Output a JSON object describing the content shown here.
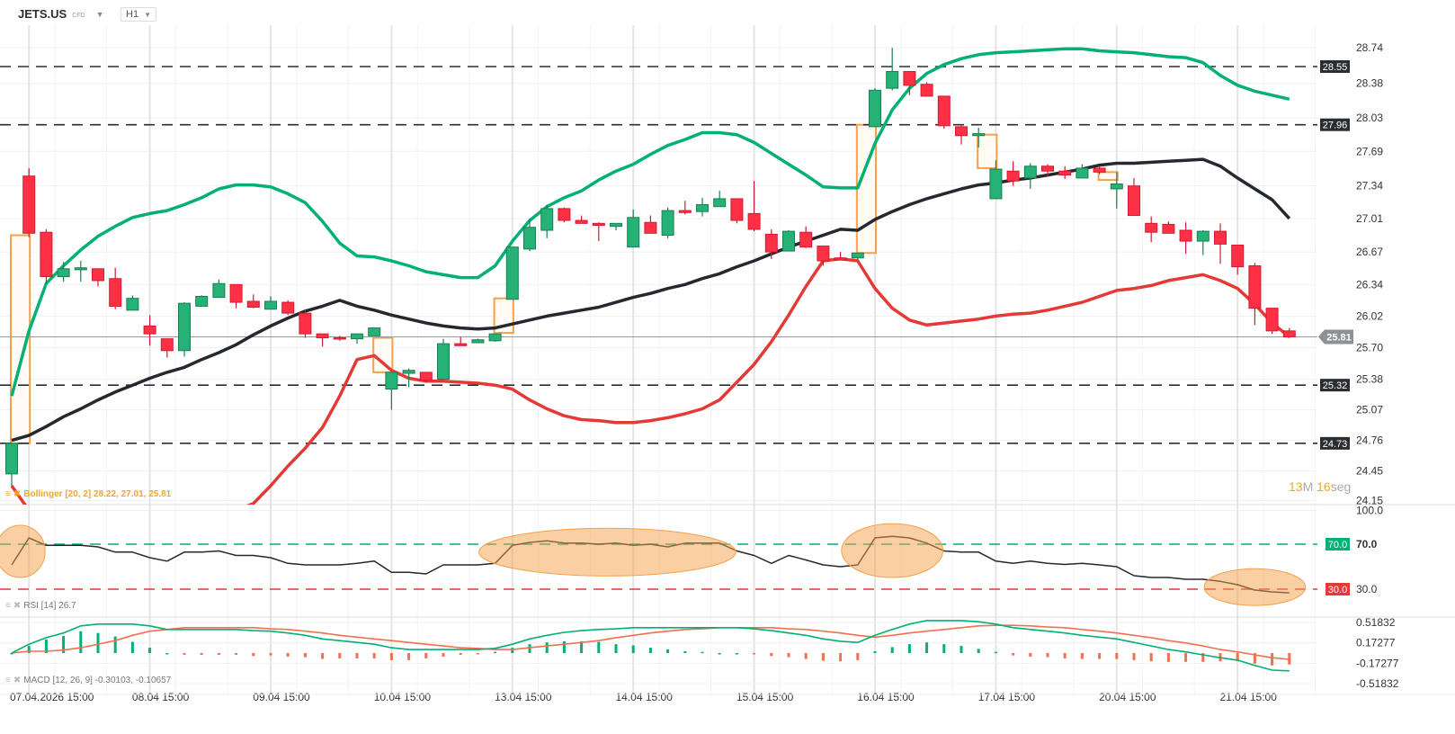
{
  "header": {
    "symbol": "JETS.US",
    "instrument_type": "CFD",
    "timeframe": "H1"
  },
  "colors": {
    "bull": "#26b276",
    "bear": "#ff3045",
    "upper_band": "#00b074",
    "middle_band": "#23292e",
    "lower_band": "#e53935",
    "gap_box": "#f5a04a",
    "rsi_line": "#23292e",
    "macd_line": "#00b074",
    "signal_line": "#f07050",
    "level_line": "#2a2e33"
  },
  "timer": {
    "minutes": "13",
    "minutes_unit": "M",
    "seconds": "16",
    "seconds_unit": "seg"
  },
  "chart_data": [
    {
      "type": "candlestick",
      "title": "",
      "ylim": [
        24.12,
        28.9
      ],
      "y_ticks": [
        "28.74",
        "28.38",
        "28.03",
        "27.69",
        "27.34",
        "27.01",
        "26.67",
        "26.34",
        "26.02",
        "25.70",
        "25.38",
        "25.07",
        "24.76",
        "24.45",
        "24.15"
      ],
      "x_ticks": [
        {
          "index": 1,
          "label": "07.04.2026 15:00"
        },
        {
          "index": 8,
          "label": "08.04 15:00"
        },
        {
          "index": 15,
          "label": "09.04 15:00"
        },
        {
          "index": 22,
          "label": "10.04 15:00"
        },
        {
          "index": 29,
          "label": "13.04 15:00"
        },
        {
          "index": 36,
          "label": "14.04 15:00"
        },
        {
          "index": 43,
          "label": "15.04 15:00"
        },
        {
          "index": 50,
          "label": "16.04 15:00"
        },
        {
          "index": 57,
          "label": "17.04 15:00"
        },
        {
          "index": 64,
          "label": "20.04 15:00"
        },
        {
          "index": 71,
          "label": "21.04 15:00"
        }
      ],
      "ohlc_order": [
        "open",
        "high",
        "low",
        "close"
      ],
      "candles": [
        [
          24.42,
          24.74,
          24.3,
          24.73
        ],
        [
          27.44,
          27.52,
          26.82,
          26.86
        ],
        [
          26.87,
          26.9,
          26.35,
          26.42
        ],
        [
          26.42,
          26.57,
          26.37,
          26.5
        ],
        [
          26.49,
          26.58,
          26.37,
          26.51
        ],
        [
          26.5,
          26.5,
          26.32,
          26.38
        ],
        [
          26.4,
          26.51,
          26.09,
          26.12
        ],
        [
          26.08,
          26.23,
          26.08,
          26.2
        ],
        [
          25.92,
          26.03,
          25.72,
          25.84
        ],
        [
          25.79,
          25.79,
          25.6,
          25.67
        ],
        [
          25.67,
          26.16,
          25.61,
          26.15
        ],
        [
          26.12,
          26.23,
          26.12,
          26.22
        ],
        [
          26.21,
          26.39,
          26.21,
          26.35
        ],
        [
          26.34,
          26.34,
          26.1,
          26.16
        ],
        [
          26.17,
          26.24,
          26.1,
          26.11
        ],
        [
          26.09,
          26.22,
          26.09,
          26.17
        ],
        [
          26.16,
          26.18,
          26.03,
          26.05
        ],
        [
          26.05,
          26.09,
          25.8,
          25.84
        ],
        [
          25.84,
          25.84,
          25.71,
          25.8
        ],
        [
          25.8,
          25.82,
          25.77,
          25.79
        ],
        [
          25.79,
          25.84,
          25.74,
          25.84
        ],
        [
          25.82,
          25.9,
          25.82,
          25.9
        ],
        [
          25.28,
          25.45,
          25.07,
          25.45
        ],
        [
          25.44,
          25.49,
          25.3,
          25.47
        ],
        [
          25.45,
          25.45,
          25.35,
          25.37
        ],
        [
          25.38,
          25.79,
          25.38,
          25.74
        ],
        [
          25.74,
          25.81,
          25.72,
          25.72
        ],
        [
          25.75,
          25.79,
          25.75,
          25.78
        ],
        [
          25.77,
          25.84,
          25.76,
          25.84
        ],
        [
          26.19,
          26.72,
          26.19,
          26.72
        ],
        [
          26.7,
          27.01,
          26.68,
          26.92
        ],
        [
          26.89,
          27.15,
          26.81,
          27.11
        ],
        [
          27.11,
          27.12,
          26.97,
          26.99
        ],
        [
          26.99,
          27.04,
          26.96,
          26.96
        ],
        [
          26.96,
          26.97,
          26.78,
          26.94
        ],
        [
          26.93,
          26.96,
          26.89,
          26.96
        ],
        [
          26.72,
          27.1,
          26.72,
          27.02
        ],
        [
          26.97,
          27.04,
          26.86,
          26.86
        ],
        [
          26.84,
          27.12,
          26.81,
          27.09
        ],
        [
          27.09,
          27.19,
          27.05,
          27.07
        ],
        [
          27.08,
          27.22,
          27.03,
          27.15
        ],
        [
          27.13,
          27.29,
          27.13,
          27.21
        ],
        [
          27.21,
          27.21,
          26.96,
          26.99
        ],
        [
          27.06,
          27.39,
          26.88,
          26.9
        ],
        [
          26.85,
          26.9,
          26.6,
          26.67
        ],
        [
          26.68,
          26.89,
          26.68,
          26.88
        ],
        [
          26.87,
          26.93,
          26.71,
          26.72
        ],
        [
          26.73,
          26.73,
          26.53,
          26.58
        ],
        [
          26.61,
          26.67,
          26.59,
          26.59
        ],
        [
          26.61,
          26.66,
          26.58,
          26.66
        ],
        [
          27.94,
          28.33,
          27.94,
          28.31
        ],
        [
          28.33,
          28.74,
          28.31,
          28.5
        ],
        [
          28.5,
          28.5,
          28.26,
          28.36
        ],
        [
          28.37,
          28.39,
          28.25,
          28.25
        ],
        [
          28.25,
          28.25,
          27.92,
          27.95
        ],
        [
          27.94,
          27.95,
          27.76,
          27.85
        ],
        [
          27.85,
          27.93,
          27.73,
          27.87
        ],
        [
          27.21,
          27.6,
          27.21,
          27.51
        ],
        [
          27.49,
          27.59,
          27.34,
          27.39
        ],
        [
          27.42,
          27.57,
          27.31,
          27.54
        ],
        [
          27.54,
          27.56,
          27.44,
          27.49
        ],
        [
          27.49,
          27.54,
          27.41,
          27.45
        ],
        [
          27.42,
          27.56,
          27.42,
          27.52
        ],
        [
          27.52,
          27.54,
          27.46,
          27.48
        ],
        [
          27.31,
          27.48,
          27.11,
          27.36
        ],
        [
          27.34,
          27.42,
          27.04,
          27.04
        ],
        [
          26.96,
          27.03,
          26.77,
          26.87
        ],
        [
          26.95,
          26.98,
          26.86,
          26.86
        ],
        [
          26.89,
          26.97,
          26.65,
          26.78
        ],
        [
          26.78,
          26.89,
          26.64,
          26.88
        ],
        [
          26.88,
          26.96,
          26.55,
          26.75
        ],
        [
          26.74,
          26.74,
          26.44,
          26.52
        ],
        [
          26.53,
          26.56,
          25.93,
          26.1
        ],
        [
          26.1,
          26.1,
          25.84,
          25.87
        ],
        [
          25.87,
          25.9,
          25.8,
          25.81
        ]
      ],
      "bollinger": {
        "legend": "Bollinger [20, 2] 28.22, 27.01, 25.81",
        "upper": [
          25.21,
          25.87,
          26.35,
          26.53,
          26.69,
          26.83,
          26.93,
          27.02,
          27.06,
          27.09,
          27.15,
          27.22,
          27.31,
          27.35,
          27.35,
          27.33,
          27.26,
          27.17,
          26.98,
          26.76,
          26.63,
          26.62,
          26.58,
          26.53,
          26.47,
          26.44,
          26.41,
          26.41,
          26.53,
          26.78,
          26.99,
          27.13,
          27.22,
          27.29,
          27.4,
          27.49,
          27.56,
          27.66,
          27.75,
          27.81,
          27.88,
          27.88,
          27.86,
          27.78,
          27.67,
          27.56,
          27.45,
          27.33,
          27.32,
          27.32,
          27.77,
          28.11,
          28.33,
          28.48,
          28.57,
          28.63,
          28.67,
          28.69,
          28.7,
          28.71,
          28.72,
          28.73,
          28.73,
          28.71,
          28.7,
          28.69,
          28.67,
          28.65,
          28.64,
          28.59,
          28.46,
          28.36,
          28.3,
          28.26,
          28.22
        ],
        "middle": [
          24.76,
          24.81,
          24.9,
          25.0,
          25.08,
          25.17,
          25.25,
          25.32,
          25.39,
          25.45,
          25.5,
          25.58,
          25.65,
          25.73,
          25.83,
          25.92,
          26.0,
          26.07,
          26.12,
          26.18,
          26.12,
          26.08,
          26.03,
          25.99,
          25.95,
          25.92,
          25.9,
          25.89,
          25.9,
          25.94,
          25.98,
          26.02,
          26.05,
          26.08,
          26.11,
          26.16,
          26.21,
          26.25,
          26.3,
          26.34,
          26.4,
          26.45,
          26.52,
          26.58,
          26.65,
          26.72,
          26.78,
          26.84,
          26.9,
          26.89,
          27.0,
          27.08,
          27.15,
          27.21,
          27.26,
          27.31,
          27.35,
          27.37,
          27.4,
          27.42,
          27.45,
          27.48,
          27.51,
          27.55,
          27.57,
          27.57,
          27.58,
          27.59,
          27.6,
          27.61,
          27.54,
          27.42,
          27.31,
          27.2,
          27.01
        ],
        "lower": [
          24.3,
          24.05,
          23.85,
          23.7,
          23.6,
          23.55,
          23.5,
          23.5,
          23.55,
          23.6,
          23.7,
          23.8,
          23.95,
          24.05,
          24.12,
          24.3,
          24.5,
          24.68,
          24.89,
          25.21,
          25.58,
          25.62,
          25.47,
          25.39,
          25.36,
          25.36,
          25.35,
          25.34,
          25.32,
          25.28,
          25.17,
          25.08,
          25.01,
          24.97,
          24.96,
          24.94,
          24.94,
          24.96,
          24.99,
          25.03,
          25.08,
          25.17,
          25.35,
          25.53,
          25.76,
          26.03,
          26.32,
          26.58,
          26.6,
          26.58,
          26.3,
          26.1,
          25.98,
          25.93,
          25.95,
          25.97,
          25.99,
          26.02,
          26.04,
          26.05,
          26.08,
          26.12,
          26.16,
          26.22,
          26.28,
          26.3,
          26.33,
          26.38,
          26.41,
          26.44,
          26.38,
          26.3,
          26.14,
          25.95,
          25.81
        ]
      },
      "levels": [
        {
          "value": 28.55,
          "label": "28.55"
        },
        {
          "value": 27.96,
          "label": "27.96"
        },
        {
          "value": 25.32,
          "label": "25.32"
        },
        {
          "value": 24.73,
          "label": "24.73"
        }
      ],
      "current_price": {
        "value": 25.81,
        "label": "25.81"
      },
      "gap_boxes": [
        {
          "from": 0,
          "to": 1,
          "low": 24.73,
          "high": 26.84
        },
        {
          "from": 21,
          "to": 22,
          "low": 25.45,
          "high": 25.8
        },
        {
          "from": 28,
          "to": 29,
          "low": 25.85,
          "high": 26.2
        },
        {
          "from": 49,
          "to": 50,
          "low": 26.66,
          "high": 27.96
        },
        {
          "from": 56,
          "to": 57,
          "low": 27.52,
          "high": 27.86
        },
        {
          "from": 63,
          "to": 64,
          "low": 27.4,
          "high": 27.48
        }
      ]
    },
    {
      "type": "line",
      "title": "",
      "legend": "RSI [14] 26.7",
      "ylim": [
        0,
        100
      ],
      "y_ticks": [
        "100.0",
        "70.0",
        "30.0"
      ],
      "overbought": {
        "value": 70,
        "label": "70.0"
      },
      "oversold": {
        "value": 30,
        "label": "30.0"
      },
      "values": [
        51.6,
        75.6,
        69,
        69,
        69,
        67.6,
        63,
        63,
        58,
        55,
        63,
        63,
        64,
        60,
        60,
        58,
        53,
        51.6,
        51.6,
        51.6,
        53,
        55,
        45,
        45,
        43.6,
        51.6,
        51.6,
        51.6,
        53,
        69,
        71.6,
        73,
        71,
        71,
        70,
        71,
        69,
        70,
        67.6,
        71,
        71,
        71,
        64,
        60,
        53,
        60,
        56,
        51.6,
        50,
        51.6,
        75.6,
        77,
        75.6,
        71,
        64,
        63,
        63,
        55,
        53,
        55,
        53,
        52,
        53,
        51.6,
        50,
        42,
        40.4,
        40.4,
        38.8,
        38.8,
        37,
        34,
        29.2,
        27.6,
        26.7
      ],
      "highlights": [
        {
          "from": 0,
          "to": 1
        },
        {
          "from": 28,
          "to": 41
        },
        {
          "from": 49,
          "to": 53
        },
        {
          "from": 70,
          "to": 74
        }
      ]
    },
    {
      "type": "line",
      "title": "",
      "legend": "MACD [12, 26, 9] -0.30103, -0.10657",
      "ylim": [
        -0.6,
        0.6
      ],
      "y_ticks": [
        "0.51832",
        "0.17277",
        "-0.17277",
        "-0.51832"
      ],
      "y_tick_values": [
        0.51832,
        0.17277,
        -0.17277,
        -0.51832
      ],
      "macd": [
        0,
        0.15,
        0.26,
        0.34,
        0.46,
        0.49,
        0.49,
        0.49,
        0.46,
        0.4,
        0.4,
        0.4,
        0.4,
        0.4,
        0.38,
        0.37,
        0.34,
        0.3,
        0.24,
        0.21,
        0.18,
        0.15,
        0.09,
        0.06,
        0.06,
        0.06,
        0.06,
        0.06,
        0.08,
        0.15,
        0.24,
        0.3,
        0.35,
        0.38,
        0.4,
        0.41,
        0.43,
        0.43,
        0.43,
        0.43,
        0.43,
        0.43,
        0.43,
        0.41,
        0.38,
        0.34,
        0.3,
        0.24,
        0.2,
        0.18,
        0.3,
        0.4,
        0.49,
        0.55,
        0.55,
        0.55,
        0.53,
        0.49,
        0.43,
        0.4,
        0.37,
        0.34,
        0.3,
        0.27,
        0.24,
        0.18,
        0.12,
        0.06,
        0.02,
        -0.03,
        -0.08,
        -0.12,
        -0.21,
        -0.29,
        -0.30103
      ],
      "signal": [
        0,
        0.03,
        0.03,
        0.05,
        0.09,
        0.15,
        0.21,
        0.3,
        0.37,
        0.4,
        0.43,
        0.43,
        0.43,
        0.43,
        0.43,
        0.41,
        0.4,
        0.37,
        0.34,
        0.3,
        0.27,
        0.24,
        0.21,
        0.18,
        0.15,
        0.12,
        0.09,
        0.08,
        0.06,
        0.06,
        0.09,
        0.12,
        0.15,
        0.18,
        0.21,
        0.26,
        0.3,
        0.34,
        0.37,
        0.4,
        0.41,
        0.43,
        0.43,
        0.43,
        0.43,
        0.41,
        0.4,
        0.37,
        0.34,
        0.3,
        0.27,
        0.3,
        0.34,
        0.37,
        0.4,
        0.43,
        0.46,
        0.47,
        0.47,
        0.46,
        0.44,
        0.43,
        0.4,
        0.37,
        0.34,
        0.3,
        0.26,
        0.21,
        0.17,
        0.12,
        0.06,
        0.02,
        -0.03,
        -0.08,
        -0.10657
      ]
    }
  ]
}
